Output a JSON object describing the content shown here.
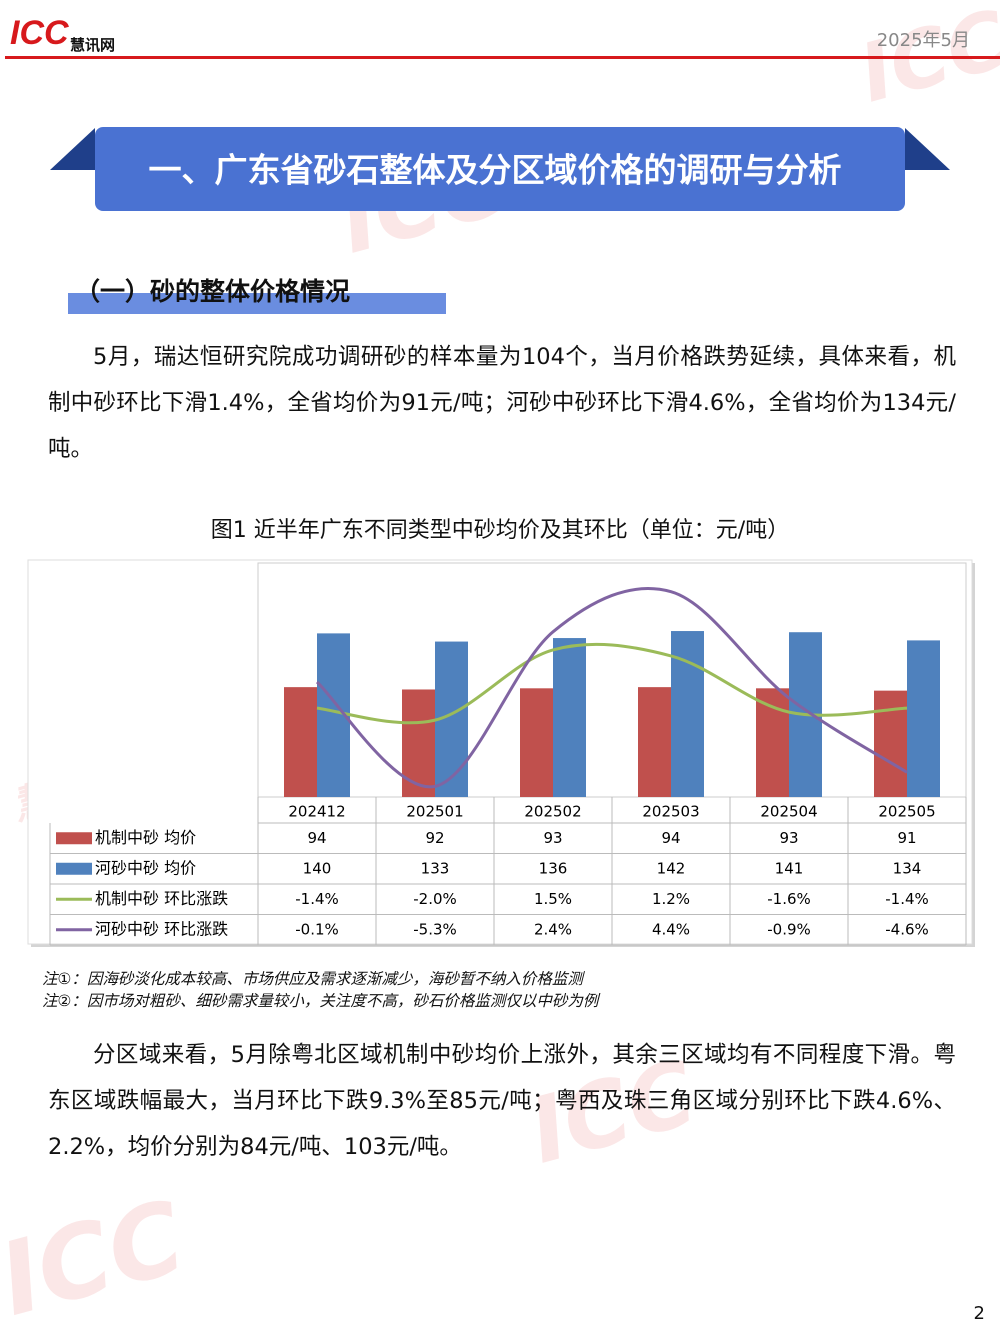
{
  "header": {
    "logo_main": "ICC",
    "logo_sub": "慧讯网",
    "date": "2025年5月"
  },
  "section_title": "一、广东省砂石整体及分区域价格的调研与分析",
  "subsection_title": "（一）砂的整体价格情况",
  "paragraph_1": "5月，瑞达恒研究院成功调研砂的样本量为104个，当月价格跌势延续，具体来看，机制中砂环比下滑1.4%，全省均价为91元/吨；河砂中砂环比下滑4.6%，全省均价为134元/吨。",
  "figure_title": "图1 近半年广东不同类型中砂均价及其环比（单位：元/吨）",
  "chart_data": {
    "type": "bar-line-table",
    "categories": [
      "202412",
      "202501",
      "202502",
      "202503",
      "202504",
      "202505"
    ],
    "series": [
      {
        "name": "机制中砂 均价",
        "type": "bar",
        "color": "#c0504d",
        "values": [
          94,
          92,
          93,
          94,
          93,
          91
        ]
      },
      {
        "name": "河砂中砂 均价",
        "type": "bar",
        "color": "#4f81bd",
        "values": [
          140,
          133,
          136,
          142,
          141,
          134
        ]
      },
      {
        "name": "机制中砂 环比涨跌",
        "type": "line",
        "axis": "y2",
        "color": "#9bbb59",
        "values": [
          -1.4,
          -2.0,
          1.5,
          1.2,
          -1.6,
          -1.4
        ],
        "value_labels": [
          "-1.4%",
          "-2.0%",
          "1.5%",
          "1.2%",
          "-1.6%",
          "-1.4%"
        ]
      },
      {
        "name": "河砂中砂 环比涨跌",
        "type": "line",
        "axis": "y2",
        "color": "#8064a2",
        "values": [
          -0.1,
          -5.3,
          2.4,
          4.4,
          -0.9,
          -4.6
        ],
        "value_labels": [
          "-0.1%",
          "-5.3%",
          "2.4%",
          "4.4%",
          "-0.9%",
          "-4.6%"
        ]
      }
    ]
  },
  "notes": [
    "注①：因海砂淡化成本较高、市场供应及需求逐渐减少，海砂暂不纳入价格监测",
    "注②：因市场对粗砂、细砂需求量较小，关注度不高，砂石价格监测仅以中砂为例"
  ],
  "paragraph_2": "分区域来看，5月除粤北区域机制中砂均价上涨外，其余三区域均有不同程度下滑。粤东区域跌幅最大，当月环比下跌9.3%至85元/吨；粤西及珠三角区域分别环比下跌4.6%、2.2%，均价分别为84元/吨、103元/吨。",
  "page_number": "2"
}
